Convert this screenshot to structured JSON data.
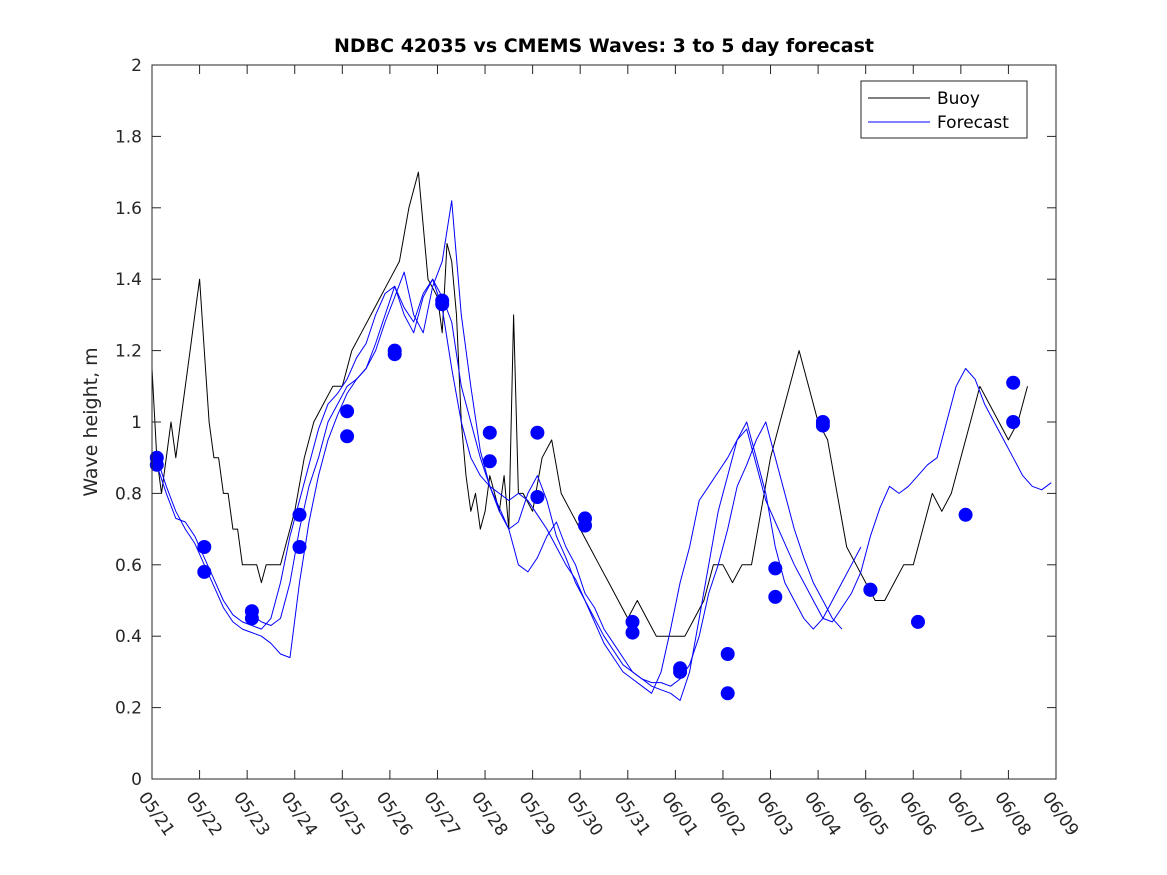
{
  "chart_data": {
    "type": "line",
    "title": "NDBC 42035 vs CMEMS Waves: 3 to 5 day forecast",
    "xlabel": "",
    "ylabel": "Wave height, m",
    "ylim": [
      0,
      2
    ],
    "yticks": [
      "0",
      "0.2",
      "0.4",
      "0.6",
      "0.8",
      "1",
      "1.2",
      "1.4",
      "1.6",
      "1.8",
      "2"
    ],
    "xlim_days": [
      0,
      19
    ],
    "xticks": [
      "05/21",
      "05/22",
      "05/23",
      "05/24",
      "05/25",
      "05/26",
      "05/27",
      "05/28",
      "05/29",
      "05/30",
      "05/31",
      "06/01",
      "06/02",
      "06/03",
      "06/04",
      "06/05",
      "06/06",
      "06/07",
      "06/08",
      "06/09"
    ],
    "grid": false,
    "legend": {
      "position": "top-right",
      "entries": [
        "Buoy",
        "Forecast"
      ]
    },
    "colors": {
      "buoy": "#000000",
      "forecast": "#0000ff",
      "markers": "#0000ff"
    },
    "series": [
      {
        "name": "Buoy",
        "x": [
          0,
          0.1,
          0.2,
          0.3,
          0.4,
          0.5,
          0.6,
          0.7,
          0.8,
          0.9,
          1.0,
          1.1,
          1.2,
          1.3,
          1.4,
          1.5,
          1.6,
          1.7,
          1.8,
          1.9,
          2.0,
          2.1,
          2.2,
          2.3,
          2.4,
          2.5,
          2.6,
          2.7,
          2.8,
          2.9,
          3.0,
          3.2,
          3.4,
          3.6,
          3.8,
          4.0,
          4.2,
          4.4,
          4.6,
          4.8,
          5.0,
          5.2,
          5.4,
          5.6,
          5.8,
          6.0,
          6.1,
          6.2,
          6.3,
          6.4,
          6.5,
          6.6,
          6.7,
          6.8,
          6.9,
          7.0,
          7.1,
          7.2,
          7.3,
          7.4,
          7.5,
          7.6,
          7.7,
          7.8,
          8.0,
          8.2,
          8.4,
          8.6,
          8.8,
          9.0,
          9.2,
          9.4,
          9.6,
          9.8,
          10.0,
          10.2,
          10.4,
          10.6,
          10.8,
          11.0,
          11.2,
          11.4,
          11.6,
          11.8,
          12.0,
          12.2,
          12.4,
          12.6,
          12.8,
          13.0,
          13.2,
          13.4,
          13.6,
          13.8,
          14.0,
          14.2,
          14.4,
          14.6,
          14.8,
          15.0,
          15.2,
          15.4,
          15.6,
          15.8,
          16.0,
          16.2,
          16.4,
          16.6,
          16.8,
          17.0,
          17.2,
          17.4,
          17.6,
          17.8,
          18.0,
          18.2,
          18.4
        ],
        "values": [
          1.15,
          0.9,
          0.8,
          0.9,
          1.0,
          0.9,
          1.0,
          1.1,
          1.2,
          1.3,
          1.4,
          1.2,
          1.0,
          0.9,
          0.9,
          0.8,
          0.8,
          0.7,
          0.7,
          0.6,
          0.6,
          0.6,
          0.6,
          0.55,
          0.6,
          0.6,
          0.6,
          0.6,
          0.65,
          0.7,
          0.75,
          0.9,
          1.0,
          1.05,
          1.1,
          1.1,
          1.2,
          1.25,
          1.3,
          1.35,
          1.4,
          1.45,
          1.6,
          1.7,
          1.4,
          1.35,
          1.25,
          1.5,
          1.45,
          1.3,
          1.0,
          0.85,
          0.75,
          0.8,
          0.7,
          0.75,
          0.85,
          0.8,
          0.75,
          0.85,
          0.7,
          1.3,
          0.8,
          0.8,
          0.75,
          0.9,
          0.95,
          0.8,
          0.75,
          0.7,
          0.65,
          0.6,
          0.55,
          0.5,
          0.45,
          0.5,
          0.45,
          0.4,
          0.4,
          0.4,
          0.4,
          0.45,
          0.5,
          0.6,
          0.6,
          0.55,
          0.6,
          0.6,
          0.75,
          0.9,
          1.0,
          1.1,
          1.2,
          1.1,
          1.0,
          0.95,
          0.8,
          0.65,
          0.6,
          0.55,
          0.5,
          0.5,
          0.55,
          0.6,
          0.6,
          0.7,
          0.8,
          0.75,
          0.8,
          0.9,
          1.0,
          1.1,
          1.05,
          1.0,
          0.95,
          1.0,
          1.1
        ]
      },
      {
        "name": "Forecast",
        "x": [
          0.1,
          0.3,
          0.5,
          0.7,
          0.9,
          1.1,
          1.3,
          1.5,
          1.7,
          1.9,
          2.1,
          2.3,
          2.5,
          2.7,
          2.9,
          3.1,
          3.3,
          3.5,
          3.7,
          3.9,
          4.1,
          4.3,
          4.5,
          4.7,
          4.9,
          5.1,
          5.3,
          5.5,
          5.7,
          5.9,
          6.1,
          6.3,
          6.5,
          6.7,
          6.9,
          7.1,
          7.3,
          7.5,
          7.7,
          7.9,
          8.1,
          8.3,
          8.5,
          8.7,
          8.9,
          9.1,
          9.3,
          9.5,
          9.7,
          9.9,
          10.1,
          10.3,
          10.5,
          10.7,
          10.9,
          11.1,
          11.3,
          11.5,
          11.7,
          11.9,
          12.1,
          12.3,
          12.5,
          12.7,
          12.9,
          13.1,
          13.3,
          13.5,
          13.7,
          13.9,
          14.1,
          14.3,
          14.5
        ],
        "values": [
          0.88,
          0.8,
          0.73,
          0.72,
          0.68,
          0.62,
          0.56,
          0.5,
          0.46,
          0.44,
          0.43,
          0.42,
          0.45,
          0.55,
          0.68,
          0.78,
          0.88,
          0.98,
          1.05,
          1.08,
          1.12,
          1.18,
          1.22,
          1.3,
          1.36,
          1.38,
          1.3,
          1.25,
          1.35,
          1.4,
          1.32,
          1.15,
          1.0,
          0.9,
          0.85,
          0.82,
          0.8,
          0.78,
          0.8,
          0.78,
          0.74,
          0.7,
          0.65,
          0.6,
          0.56,
          0.5,
          0.45,
          0.4,
          0.36,
          0.32,
          0.3,
          0.28,
          0.27,
          0.27,
          0.26,
          0.28,
          0.32,
          0.4,
          0.52,
          0.6,
          0.7,
          0.82,
          0.88,
          0.95,
          1.0,
          0.9,
          0.8,
          0.7,
          0.62,
          0.55,
          0.5,
          0.45,
          0.42
        ]
      },
      {
        "name": "",
        "x": [
          0.1,
          0.3,
          0.5,
          0.7,
          0.9,
          1.1,
          1.3,
          1.5,
          1.7,
          1.9,
          2.1,
          2.3,
          2.5,
          2.7,
          2.9,
          3.1,
          3.3,
          3.5,
          3.7,
          3.9,
          4.1,
          4.3,
          4.5,
          4.7,
          4.9,
          5.1,
          5.3,
          5.5,
          5.7,
          5.9,
          6.1,
          6.3,
          6.5,
          6.7,
          6.9,
          7.1,
          7.3,
          7.5,
          7.7,
          7.9,
          8.1,
          8.3,
          8.5,
          8.7,
          8.9,
          9.1,
          9.3,
          9.5,
          9.7,
          9.9,
          10.1,
          10.3,
          10.5,
          10.7,
          10.9,
          11.1,
          11.3,
          11.5,
          11.7,
          11.9,
          12.1,
          12.3,
          12.5,
          12.7,
          12.9,
          13.1,
          13.3,
          13.5,
          13.7,
          13.9,
          14.1,
          14.3,
          14.5,
          14.7,
          14.9
        ],
        "values": [
          0.9,
          0.82,
          0.75,
          0.7,
          0.66,
          0.6,
          0.54,
          0.48,
          0.44,
          0.42,
          0.41,
          0.4,
          0.38,
          0.35,
          0.34,
          0.55,
          0.72,
          0.85,
          0.95,
          1.02,
          1.08,
          1.12,
          1.15,
          1.2,
          1.28,
          1.35,
          1.42,
          1.3,
          1.25,
          1.38,
          1.45,
          1.62,
          1.3,
          1.1,
          0.92,
          0.82,
          0.76,
          0.7,
          0.6,
          0.58,
          0.62,
          0.68,
          0.72,
          0.65,
          0.6,
          0.52,
          0.48,
          0.42,
          0.38,
          0.34,
          0.3,
          0.28,
          0.26,
          0.25,
          0.24,
          0.22,
          0.3,
          0.45,
          0.6,
          0.75,
          0.85,
          0.95,
          1.0,
          0.9,
          0.8,
          0.65,
          0.55,
          0.5,
          0.45,
          0.42,
          0.45,
          0.5,
          0.55,
          0.6,
          0.65
        ]
      },
      {
        "name": "",
        "x": [
          2.1,
          2.3,
          2.5,
          2.7,
          2.9,
          3.1,
          3.3,
          3.5,
          3.7,
          3.9,
          4.1,
          4.3,
          4.5,
          4.7,
          4.9,
          5.1,
          5.3,
          5.5,
          5.7,
          5.9,
          6.1,
          6.3,
          6.5,
          6.7,
          6.9,
          7.1,
          7.3,
          7.5,
          7.7,
          7.9,
          8.1,
          8.3,
          8.5,
          8.7,
          8.9,
          9.1,
          9.3,
          9.5,
          9.7,
          9.9,
          10.1,
          10.3,
          10.5,
          10.7,
          10.9,
          11.1,
          11.3,
          11.5,
          11.7,
          11.9,
          12.1,
          12.3,
          12.5,
          12.7,
          12.9,
          13.1,
          13.3,
          13.5,
          13.7,
          13.9,
          14.1,
          14.3,
          14.5,
          14.7,
          14.9,
          15.1,
          15.3,
          15.5,
          15.7,
          15.9,
          16.1,
          16.3,
          16.5,
          16.7,
          16.9,
          17.1,
          17.3,
          17.5,
          17.7,
          17.9,
          18.1,
          18.3,
          18.5,
          18.7,
          18.9
        ],
        "values": [
          0.46,
          0.44,
          0.43,
          0.45,
          0.55,
          0.7,
          0.82,
          0.9,
          1.0,
          1.05,
          1.1,
          1.12,
          1.15,
          1.22,
          1.3,
          1.38,
          1.32,
          1.28,
          1.36,
          1.4,
          1.35,
          1.28,
          1.1,
          1.0,
          0.9,
          0.82,
          0.75,
          0.7,
          0.72,
          0.8,
          0.85,
          0.78,
          0.68,
          0.62,
          0.55,
          0.5,
          0.44,
          0.38,
          0.34,
          0.3,
          0.28,
          0.26,
          0.24,
          0.3,
          0.42,
          0.55,
          0.65,
          0.78,
          0.82,
          0.86,
          0.9,
          0.95,
          0.98,
          0.88,
          0.78,
          0.72,
          0.66,
          0.6,
          0.55,
          0.5,
          0.45,
          0.44,
          0.48,
          0.52,
          0.58,
          0.68,
          0.76,
          0.82,
          0.8,
          0.82,
          0.85,
          0.88,
          0.9,
          1.0,
          1.1,
          1.15,
          1.12,
          1.05,
          1.0,
          0.95,
          0.9,
          0.85,
          0.82,
          0.81,
          0.83
        ]
      }
    ],
    "markers": {
      "x": [
        0.1,
        0.1,
        1.1,
        1.1,
        2.1,
        2.1,
        3.1,
        3.1,
        4.1,
        4.1,
        5.1,
        5.1,
        6.1,
        6.1,
        7.1,
        7.1,
        8.1,
        8.1,
        9.1,
        9.1,
        10.1,
        10.1,
        11.1,
        11.1,
        12.1,
        12.1,
        13.1,
        13.1,
        14.1,
        14.1,
        15.1,
        15.1,
        16.1,
        17.1,
        18.1,
        18.1
      ],
      "values": [
        0.9,
        0.88,
        0.65,
        0.58,
        0.47,
        0.45,
        0.74,
        0.65,
        1.03,
        0.96,
        1.2,
        1.19,
        1.34,
        1.33,
        0.97,
        0.89,
        0.97,
        0.79,
        0.73,
        0.71,
        0.44,
        0.41,
        0.31,
        0.3,
        0.35,
        0.24,
        0.59,
        0.51,
        1.0,
        0.99,
        0.53,
        0.53,
        0.44,
        0.74,
        1.11,
        1.0
      ]
    }
  }
}
